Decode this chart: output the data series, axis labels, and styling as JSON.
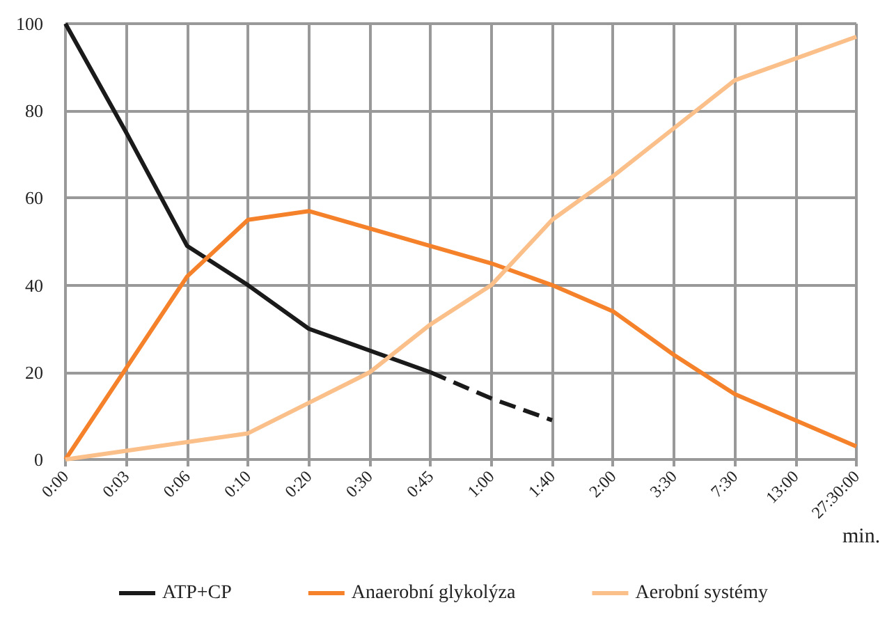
{
  "chart_data": {
    "type": "line",
    "xlabel": "min.",
    "categories": [
      "0:00",
      "0:03",
      "0:06",
      "0:10",
      "0:20",
      "0:30",
      "0:45",
      "1:00",
      "1:40",
      "2:00",
      "3:30",
      "7:30",
      "13:00",
      "27:30:00"
    ],
    "series": [
      {
        "name": "ATP+CP",
        "color": "#1a1a1a",
        "values": [
          100,
          75,
          49,
          40,
          30,
          25,
          20,
          null,
          null,
          null,
          null,
          null,
          null,
          null
        ],
        "line_style": "solid"
      },
      {
        "color": "#1a1a1a",
        "values": [
          null,
          null,
          null,
          null,
          null,
          null,
          20,
          14,
          9,
          null,
          null,
          null,
          null,
          null
        ],
        "line_style": "dashed"
      },
      {
        "name": "Anaerobní glykolýza",
        "color": "#f5822a",
        "values": [
          0,
          21,
          42,
          55,
          57,
          53,
          49,
          45,
          40,
          34,
          24,
          15,
          9,
          3
        ],
        "line_style": "solid"
      },
      {
        "name": "Aerobní systémy",
        "color": "#fbbf8a",
        "values": [
          0,
          2,
          4,
          6,
          13,
          20,
          31,
          40,
          55,
          65,
          76,
          87,
          92,
          97
        ],
        "line_style": "solid"
      }
    ],
    "ylim": [
      0,
      100
    ],
    "yticks": [
      0,
      20,
      40,
      60,
      80,
      100
    ],
    "grid": true,
    "legend": "bottom",
    "marker": "none"
  }
}
